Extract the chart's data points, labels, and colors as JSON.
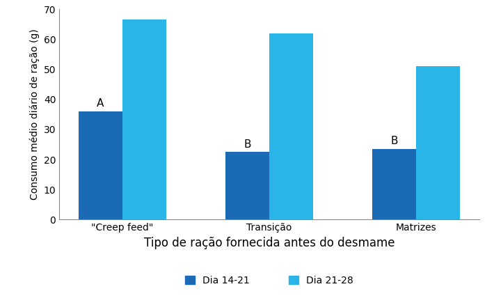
{
  "categories": [
    "\"Creep feed\"",
    "Transição",
    "Matrizes"
  ],
  "dia_14_21": [
    36,
    22.5,
    23.5
  ],
  "dia_21_28": [
    66.5,
    62,
    51
  ],
  "color_14_21": "#1a6ab5",
  "color_21_28": "#29b5e8",
  "ylabel": "Consumo médio diário de ração (g)",
  "xlabel": "Tipo de ração fornecida antes do desmame",
  "legend_14_21": "Dia 14-21",
  "legend_21_28": "Dia 21-28",
  "ylim": [
    0,
    70
  ],
  "yticks": [
    0,
    10,
    20,
    30,
    40,
    50,
    60,
    70
  ],
  "bar_width": 0.3,
  "annotations_14_21": [
    "A",
    "B",
    "B"
  ],
  "background_color": "#ffffff"
}
